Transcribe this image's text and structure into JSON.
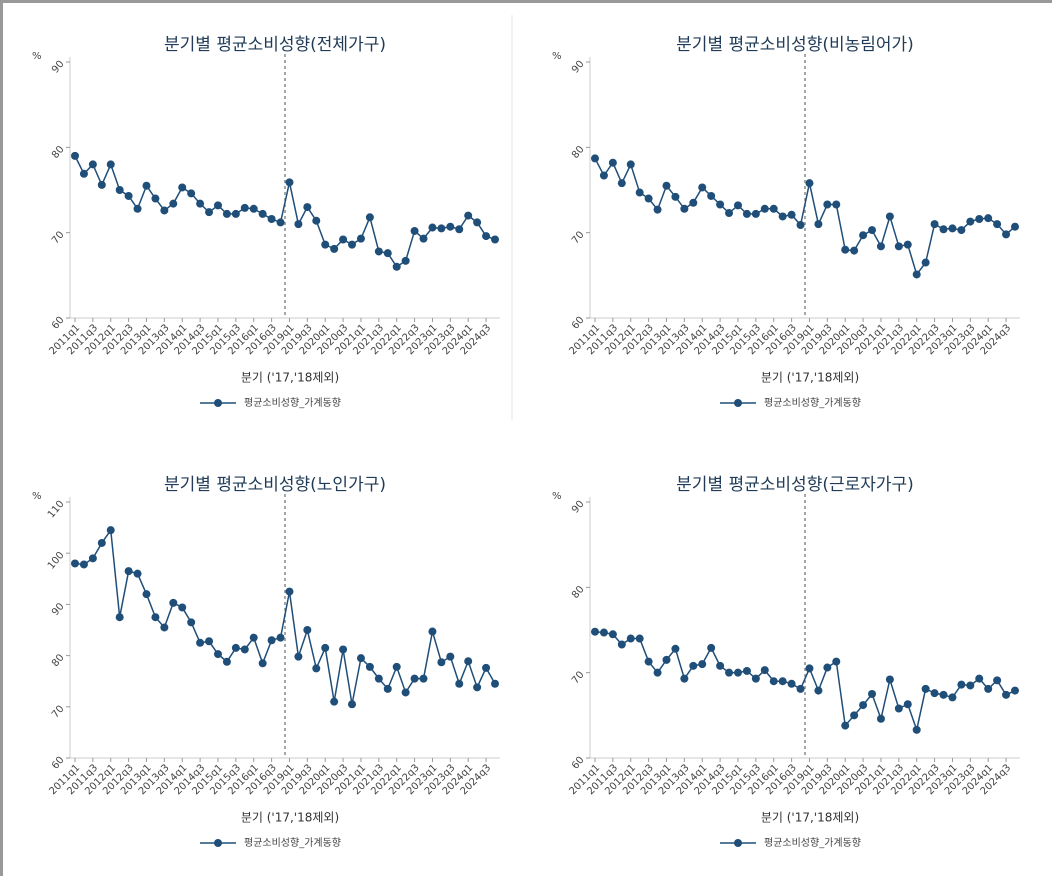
{
  "chart_data": [
    {
      "type": "line",
      "title": "분기별 평균소비성향(전체가구)",
      "y_label": "%",
      "x_label": "분기 ('17,'18제외)",
      "legend": "bottom",
      "categories": [
        "2011q1",
        null,
        "2011q3",
        null,
        "2012q1",
        null,
        "2012q3",
        null,
        "2013q1",
        null,
        "2013q3",
        null,
        "2014q1",
        null,
        "2014q3",
        null,
        "2015q1",
        null,
        "2015q3",
        null,
        "2016q1",
        null,
        "2016q3",
        null,
        "2019q1",
        null,
        "2019q3",
        null,
        "2020q1",
        null,
        "2020q3",
        null,
        "2021q1",
        null,
        "2021q3",
        null,
        "2022q1",
        null,
        "2022q3",
        null,
        "2023q1",
        null,
        "2023q3",
        null,
        "2024q1",
        null,
        "2024q3",
        null
      ],
      "series": [
        {
          "name": "평균소비성향_가계동향",
          "color": "#1f4e79",
          "values": [
            79.0,
            76.9,
            78.0,
            75.6,
            78.0,
            75.0,
            74.3,
            72.8,
            75.5,
            74.0,
            72.6,
            73.4,
            75.3,
            74.6,
            73.4,
            72.4,
            73.2,
            72.2,
            72.2,
            72.9,
            72.8,
            72.2,
            71.6,
            71.2,
            75.9,
            71.0,
            73.0,
            71.4,
            68.6,
            68.1,
            69.2,
            68.6,
            69.3,
            71.8,
            67.8,
            67.6,
            66.0,
            66.7,
            70.2,
            69.3,
            70.6,
            70.5,
            70.7,
            70.4,
            72.0,
            71.2,
            69.6,
            69.2
          ]
        }
      ],
      "ylim": [
        60,
        90
      ],
      "yticks": [
        60,
        70,
        80,
        90
      ]
    },
    {
      "type": "line",
      "title": "분기별 평균소비성향(비농림어가)",
      "y_label": "%",
      "x_label": "분기 ('17,'18제외)",
      "legend": "bottom",
      "categories": [
        "2011q1",
        null,
        "2011q3",
        null,
        "2012q1",
        null,
        "2012q3",
        null,
        "2013q1",
        null,
        "2013q3",
        null,
        "2014q1",
        null,
        "2014q3",
        null,
        "2015q1",
        null,
        "2015q3",
        null,
        "2016q1",
        null,
        "2016q3",
        null,
        "2019q1",
        null,
        "2019q3",
        null,
        "2020q1",
        null,
        "2020q3",
        null,
        "2021q1",
        null,
        "2021q3",
        null,
        "2022q1",
        null,
        "2022q3",
        null,
        "2023q1",
        null,
        "2023q3",
        null,
        "2024q1",
        null,
        "2024q3",
        null
      ],
      "series": [
        {
          "name": "평균소비성향_가계동향",
          "color": "#1f4e79",
          "values": [
            78.7,
            76.7,
            78.2,
            75.8,
            78.0,
            74.7,
            74.0,
            72.7,
            75.5,
            74.2,
            72.8,
            73.5,
            75.3,
            74.3,
            73.3,
            72.3,
            73.2,
            72.2,
            72.2,
            72.8,
            72.8,
            71.9,
            72.1,
            70.9,
            75.8,
            71.0,
            73.3,
            73.3,
            68.0,
            67.9,
            69.7,
            70.3,
            68.4,
            71.9,
            68.4,
            68.6,
            65.1,
            66.5,
            71.0,
            70.4,
            70.5,
            70.3,
            71.3,
            71.6,
            71.7,
            71.0,
            69.8,
            70.7
          ]
        }
      ],
      "ylim": [
        60,
        90
      ],
      "yticks": [
        60,
        70,
        80,
        90
      ]
    },
    {
      "type": "line",
      "title": "분기별 평균소비성향(노인가구)",
      "y_label": "%",
      "x_label": "분기 ('17,'18제외)",
      "legend": "bottom",
      "categories": [
        "2011q1",
        null,
        "2011q3",
        null,
        "2012q1",
        null,
        "2012q3",
        null,
        "2013q1",
        null,
        "2013q3",
        null,
        "2014q1",
        null,
        "2014q3",
        null,
        "2015q1",
        null,
        "2015q3",
        null,
        "2016q1",
        null,
        "2016q3",
        null,
        "2019q1",
        null,
        "2019q3",
        null,
        "2020q1",
        null,
        "2020q3",
        null,
        "2021q1",
        null,
        "2021q3",
        null,
        "2022q1",
        null,
        "2022q3",
        null,
        "2023q1",
        null,
        "2023q3",
        null,
        "2024q1",
        null,
        "2024q3",
        null
      ],
      "series": [
        {
          "name": "평균소비성향_가계동향",
          "color": "#1f4e79",
          "values": [
            98.0,
            97.8,
            99.0,
            102.0,
            104.5,
            87.5,
            96.5,
            96.0,
            92.0,
            87.5,
            85.5,
            90.3,
            89.4,
            86.5,
            82.5,
            82.8,
            80.3,
            78.8,
            81.5,
            81.2,
            83.5,
            78.5,
            83.0,
            83.5,
            92.5,
            79.8,
            85.0,
            77.5,
            81.5,
            71.0,
            81.2,
            70.5,
            79.5,
            77.8,
            75.5,
            73.5,
            77.8,
            72.8,
            75.5,
            75.5,
            84.7,
            78.7,
            79.8,
            74.5,
            78.9,
            73.8,
            77.6,
            74.5
          ]
        }
      ],
      "ylim": [
        60,
        110
      ],
      "yticks": [
        60,
        70,
        80,
        90,
        100,
        110
      ]
    },
    {
      "type": "line",
      "title": "분기별 평균소비성향(근로자가구)",
      "y_label": "%",
      "x_label": "분기 ('17,'18제외)",
      "legend": "bottom",
      "categories": [
        "2011q1",
        null,
        "2011q3",
        null,
        "2012q1",
        null,
        "2012q3",
        null,
        "2013q1",
        null,
        "2013q3",
        null,
        "2014q1",
        null,
        "2014q3",
        null,
        "2015q1",
        null,
        "2015q3",
        null,
        "2016q1",
        null,
        "2016q3",
        null,
        "2019q1",
        null,
        "2019q3",
        null,
        "2020q1",
        null,
        "2020q3",
        null,
        "2021q1",
        null,
        "2021q3",
        null,
        "2022q1",
        null,
        "2022q3",
        null,
        "2023q1",
        null,
        "2023q3",
        null,
        "2024q1",
        null,
        "2024q3",
        null
      ],
      "series": [
        {
          "name": "평균소비성향_가계동향",
          "color": "#1f4e79",
          "values": [
            74.8,
            74.7,
            74.5,
            73.3,
            74.0,
            74.0,
            71.3,
            70.0,
            71.5,
            72.8,
            69.3,
            70.8,
            71.0,
            72.9,
            70.8,
            70.0,
            70.0,
            70.2,
            69.3,
            70.3,
            69.0,
            69.0,
            68.7,
            68.1,
            70.5,
            67.9,
            70.6,
            71.3,
            63.8,
            65.0,
            66.2,
            67.5,
            64.6,
            69.2,
            65.8,
            66.3,
            63.3,
            68.1,
            67.6,
            67.4,
            67.1,
            68.6,
            68.5,
            69.3,
            68.1,
            69.1,
            67.4,
            67.9
          ]
        }
      ],
      "ylim": [
        60,
        90
      ],
      "yticks": [
        60,
        70,
        80,
        90
      ]
    }
  ]
}
